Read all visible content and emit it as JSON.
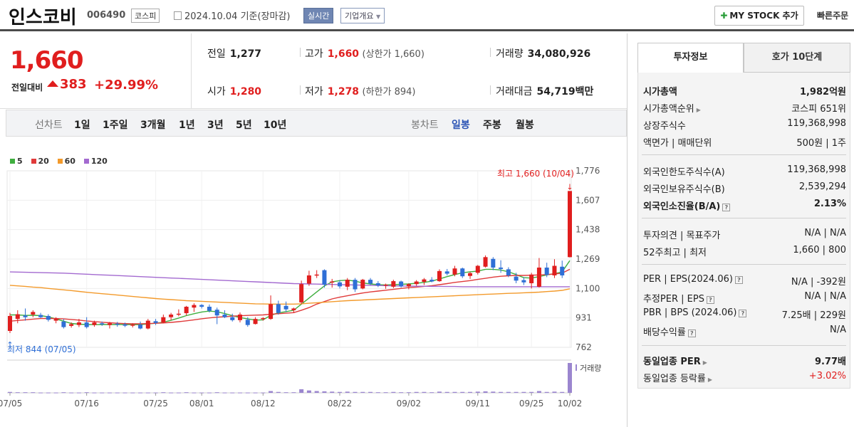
{
  "header": {
    "name": "인스코비",
    "code": "006490",
    "market": "코스피",
    "date": "2024.10.04 기준(장마감)",
    "realtime": "실시간",
    "overview": "기업개요",
    "mystock": "MY STOCK 추가",
    "quick_order": "빠른주문"
  },
  "price": {
    "current": "1,660",
    "change_label": "전일대비",
    "change": "383",
    "change_pct": "+29.99%",
    "prev_label": "전일",
    "prev": "1,277",
    "open_label": "시가",
    "open": "1,280",
    "high_label": "고가",
    "high": "1,660",
    "high_note": "(상한가 1,660)",
    "low_label": "저가",
    "low": "1,278",
    "low_note": "(하한가 894)",
    "volume_label": "거래량",
    "volume": "34,080,926",
    "value_label": "거래대금",
    "value": "54,719",
    "value_unit": "백만"
  },
  "range_bar": {
    "line_label": "선차트",
    "line_opts": [
      "1일",
      "1주일",
      "3개월",
      "1년",
      "3년",
      "5년",
      "10년"
    ],
    "candle_label": "봉차트",
    "candle_opts": [
      "일봉",
      "주봉",
      "월봉"
    ]
  },
  "legend": [
    {
      "name": "5",
      "color": "#3fae3f"
    },
    {
      "name": "20",
      "color": "#e03a3a"
    },
    {
      "name": "60",
      "color": "#f39a2b"
    },
    {
      "name": "120",
      "color": "#a36ad0"
    }
  ],
  "colors": {
    "up": "#e01e1e",
    "down": "#2f6fd6",
    "volume": "#9b86cf",
    "accent": "#2b54b5"
  },
  "chart_data": {
    "type": "candlestick",
    "y_ticks": [
      "1,776",
      "1,607",
      "1,438",
      "1,269",
      "1,100",
      "931",
      "762"
    ],
    "ylim": [
      762,
      1776
    ],
    "x_ticks": [
      "07/05",
      "07/16",
      "07/25",
      "08/01",
      "08/12",
      "08/22",
      "09/02",
      "09/11",
      "09/25",
      "10/02"
    ],
    "high_annotation": "최고 1,660 (10/04)",
    "low_annotation": "최저 844 (07/05)",
    "volume_label": "거래량",
    "candles": [
      {
        "o": 856,
        "h": 960,
        "l": 844,
        "c": 942
      },
      {
        "o": 925,
        "h": 975,
        "l": 900,
        "c": 952
      },
      {
        "o": 945,
        "h": 985,
        "l": 915,
        "c": 935
      },
      {
        "o": 950,
        "h": 975,
        "l": 935,
        "c": 965
      },
      {
        "o": 948,
        "h": 960,
        "l": 930,
        "c": 935
      },
      {
        "o": 942,
        "h": 952,
        "l": 910,
        "c": 920
      },
      {
        "o": 915,
        "h": 935,
        "l": 900,
        "c": 925
      },
      {
        "o": 910,
        "h": 925,
        "l": 870,
        "c": 878
      },
      {
        "o": 885,
        "h": 905,
        "l": 875,
        "c": 895
      },
      {
        "o": 890,
        "h": 925,
        "l": 878,
        "c": 905
      },
      {
        "o": 905,
        "h": 935,
        "l": 870,
        "c": 878
      },
      {
        "o": 890,
        "h": 915,
        "l": 880,
        "c": 905
      },
      {
        "o": 900,
        "h": 910,
        "l": 885,
        "c": 895
      },
      {
        "o": 890,
        "h": 908,
        "l": 870,
        "c": 900
      },
      {
        "o": 898,
        "h": 908,
        "l": 880,
        "c": 892
      },
      {
        "o": 894,
        "h": 904,
        "l": 878,
        "c": 886
      },
      {
        "o": 888,
        "h": 900,
        "l": 876,
        "c": 892
      },
      {
        "o": 892,
        "h": 910,
        "l": 865,
        "c": 870
      },
      {
        "o": 870,
        "h": 925,
        "l": 865,
        "c": 915
      },
      {
        "o": 912,
        "h": 925,
        "l": 890,
        "c": 902
      },
      {
        "o": 905,
        "h": 950,
        "l": 900,
        "c": 935
      },
      {
        "o": 935,
        "h": 960,
        "l": 918,
        "c": 950
      },
      {
        "o": 950,
        "h": 980,
        "l": 940,
        "c": 955
      },
      {
        "o": 958,
        "h": 1000,
        "l": 945,
        "c": 995
      },
      {
        "o": 990,
        "h": 1015,
        "l": 965,
        "c": 1005
      },
      {
        "o": 1005,
        "h": 1010,
        "l": 985,
        "c": 995
      },
      {
        "o": 995,
        "h": 1008,
        "l": 962,
        "c": 972
      },
      {
        "o": 978,
        "h": 990,
        "l": 895,
        "c": 945
      },
      {
        "o": 950,
        "h": 975,
        "l": 930,
        "c": 935
      },
      {
        "o": 935,
        "h": 955,
        "l": 910,
        "c": 918
      },
      {
        "o": 918,
        "h": 962,
        "l": 905,
        "c": 950
      },
      {
        "o": 920,
        "h": 935,
        "l": 880,
        "c": 890
      },
      {
        "o": 896,
        "h": 935,
        "l": 893,
        "c": 925
      },
      {
        "o": 925,
        "h": 935,
        "l": 915,
        "c": 930
      },
      {
        "o": 925,
        "h": 1060,
        "l": 920,
        "c": 1010
      },
      {
        "o": 1010,
        "h": 1030,
        "l": 950,
        "c": 960
      },
      {
        "o": 1000,
        "h": 1025,
        "l": 965,
        "c": 980
      },
      {
        "o": 975,
        "h": 990,
        "l": 960,
        "c": 985
      },
      {
        "o": 1020,
        "h": 1145,
        "l": 1010,
        "c": 1125
      },
      {
        "o": 1128,
        "h": 1202,
        "l": 1115,
        "c": 1175
      },
      {
        "o": 1180,
        "h": 1205,
        "l": 1160,
        "c": 1180
      },
      {
        "o": 1205,
        "h": 1210,
        "l": 1105,
        "c": 1122
      },
      {
        "o": 1135,
        "h": 1155,
        "l": 1105,
        "c": 1140
      },
      {
        "o": 1135,
        "h": 1148,
        "l": 1100,
        "c": 1112
      },
      {
        "o": 1110,
        "h": 1160,
        "l": 1090,
        "c": 1150
      },
      {
        "o": 1150,
        "h": 1160,
        "l": 1080,
        "c": 1095
      },
      {
        "o": 1100,
        "h": 1155,
        "l": 1095,
        "c": 1150
      },
      {
        "o": 1150,
        "h": 1160,
        "l": 1120,
        "c": 1128
      },
      {
        "o": 1130,
        "h": 1142,
        "l": 1108,
        "c": 1118
      },
      {
        "o": 1118,
        "h": 1128,
        "l": 1098,
        "c": 1122
      },
      {
        "o": 1110,
        "h": 1150,
        "l": 1102,
        "c": 1142
      },
      {
        "o": 1140,
        "h": 1145,
        "l": 1105,
        "c": 1112
      },
      {
        "o": 1112,
        "h": 1130,
        "l": 1095,
        "c": 1125
      },
      {
        "o": 1125,
        "h": 1148,
        "l": 1115,
        "c": 1140
      },
      {
        "o": 1138,
        "h": 1160,
        "l": 1120,
        "c": 1152
      },
      {
        "o": 1150,
        "h": 1165,
        "l": 1135,
        "c": 1140
      },
      {
        "o": 1142,
        "h": 1210,
        "l": 1138,
        "c": 1200
      },
      {
        "o": 1198,
        "h": 1212,
        "l": 1175,
        "c": 1185
      },
      {
        "o": 1180,
        "h": 1230,
        "l": 1170,
        "c": 1215
      },
      {
        "o": 1215,
        "h": 1220,
        "l": 1160,
        "c": 1170
      },
      {
        "o": 1172,
        "h": 1195,
        "l": 1155,
        "c": 1188
      },
      {
        "o": 1190,
        "h": 1235,
        "l": 1180,
        "c": 1230
      },
      {
        "o": 1225,
        "h": 1290,
        "l": 1220,
        "c": 1280
      },
      {
        "o": 1270,
        "h": 1280,
        "l": 1205,
        "c": 1220
      },
      {
        "o": 1220,
        "h": 1262,
        "l": 1190,
        "c": 1212
      },
      {
        "o": 1210,
        "h": 1222,
        "l": 1165,
        "c": 1175
      },
      {
        "o": 1168,
        "h": 1190,
        "l": 1130,
        "c": 1145
      },
      {
        "o": 1148,
        "h": 1165,
        "l": 1120,
        "c": 1135
      },
      {
        "o": 1130,
        "h": 1190,
        "l": 1100,
        "c": 1180
      },
      {
        "o": 1110,
        "h": 1275,
        "l": 1105,
        "c": 1220
      },
      {
        "o": 1220,
        "h": 1248,
        "l": 1165,
        "c": 1178
      },
      {
        "o": 1175,
        "h": 1268,
        "l": 1160,
        "c": 1230
      },
      {
        "o": 1225,
        "h": 1260,
        "l": 1160,
        "c": 1175
      },
      {
        "o": 1280,
        "h": 1660,
        "l": 1278,
        "c": 1660
      }
    ],
    "ma": {
      "5": [
        948,
        948,
        945,
        946,
        944,
        937,
        925,
        912,
        899,
        895,
        893,
        892,
        893,
        893,
        893,
        893,
        892,
        892,
        896,
        900,
        906,
        917,
        930,
        944,
        955,
        965,
        970,
        966,
        956,
        944,
        933,
        925,
        918,
        920,
        945,
        960,
        967,
        975,
        1010,
        1045,
        1080,
        1115,
        1138,
        1145,
        1148,
        1142,
        1132,
        1126,
        1122,
        1120,
        1122,
        1124,
        1126,
        1130,
        1135,
        1142,
        1155,
        1168,
        1180,
        1190,
        1196,
        1200,
        1210,
        1210,
        1206,
        1196,
        1180,
        1162,
        1160,
        1168,
        1178,
        1185,
        1195,
        1260
      ],
      "20": [
        912,
        916,
        920,
        924,
        927,
        928,
        927,
        925,
        922,
        918,
        913,
        910,
        906,
        903,
        900,
        898,
        897,
        897,
        898,
        900,
        902,
        905,
        909,
        914,
        920,
        926,
        931,
        935,
        938,
        941,
        943,
        945,
        947,
        948,
        952,
        955,
        958,
        961,
        975,
        990,
        1010,
        1025,
        1040,
        1050,
        1058,
        1066,
        1074,
        1080,
        1085,
        1090,
        1095,
        1100,
        1105,
        1108,
        1112,
        1116,
        1122,
        1128,
        1135,
        1140,
        1145,
        1152,
        1158,
        1165,
        1170,
        1173,
        1175,
        1175,
        1176,
        1178,
        1180,
        1183,
        1188,
        1210
      ],
      "60": [
        1118,
        1115,
        1112,
        1108,
        1105,
        1100,
        1096,
        1092,
        1088,
        1083,
        1078,
        1074,
        1070,
        1066,
        1062,
        1058,
        1054,
        1050,
        1046,
        1042,
        1039,
        1036,
        1033,
        1030,
        1028,
        1026,
        1024,
        1022,
        1020,
        1018,
        1016,
        1014,
        1012,
        1011,
        1010,
        1010,
        1010,
        1010,
        1012,
        1015,
        1018,
        1021,
        1024,
        1027,
        1030,
        1032,
        1034,
        1036,
        1038,
        1040,
        1042,
        1044,
        1046,
        1048,
        1050,
        1052,
        1054,
        1056,
        1058,
        1060,
        1062,
        1064,
        1066,
        1068,
        1070,
        1072,
        1073,
        1075,
        1077,
        1079,
        1082,
        1085,
        1089,
        1098
      ],
      "120": [
        1195,
        1194,
        1193,
        1192,
        1191,
        1190,
        1189,
        1188,
        1186,
        1184,
        1182,
        1180,
        1178,
        1176,
        1174,
        1172,
        1170,
        1168,
        1166,
        1164,
        1162,
        1160,
        1158,
        1156,
        1154,
        1152,
        1150,
        1148,
        1146,
        1144,
        1142,
        1140,
        1138,
        1136,
        1134,
        1132,
        1130,
        1128,
        1127,
        1126,
        1125,
        1124,
        1123,
        1122,
        1121,
        1120,
        1119,
        1118,
        1117,
        1116,
        1115,
        1114,
        1114,
        1113,
        1113,
        1112,
        1112,
        1111,
        1111,
        1110,
        1110,
        1110,
        1110,
        1110,
        1110,
        1110,
        1110,
        1110,
        1110,
        1110,
        1110,
        1110,
        1110,
        1110
      ]
    },
    "volume": [
      3,
      2,
      2,
      2,
      1,
      1,
      1,
      2,
      1,
      1,
      2,
      1,
      1,
      1,
      1,
      1,
      1,
      1,
      1,
      1,
      2,
      1,
      1,
      2,
      1,
      1,
      1,
      2,
      1,
      1,
      1,
      1,
      1,
      1,
      6,
      3,
      2,
      2,
      12,
      8,
      6,
      5,
      4,
      3,
      4,
      3,
      3,
      3,
      2,
      2,
      3,
      2,
      2,
      3,
      3,
      2,
      4,
      3,
      3,
      3,
      3,
      4,
      5,
      4,
      3,
      3,
      3,
      3,
      3,
      6,
      3,
      4,
      3,
      100
    ]
  },
  "right_panel": {
    "tabs": [
      "투자정보",
      "호가 10단계"
    ],
    "group1": [
      {
        "label": "시가총액",
        "value": "1,982억원",
        "bold": true
      },
      {
        "label": "시가총액순위",
        "value": "코스피 651위"
      },
      {
        "label": "상장주식수",
        "value": "119,368,998"
      },
      {
        "label": "액면가 | 매매단위",
        "value": "500원 | 1주"
      }
    ],
    "group2": [
      {
        "label": "외국인한도주식수(A)",
        "value": "119,368,998"
      },
      {
        "label": "외국인보유주식수(B)",
        "value": "2,539,294"
      },
      {
        "label": "외국인소진율(B/A)",
        "value": "2.13%",
        "bold": true
      }
    ],
    "group3": [
      {
        "label": "투자의견 | 목표주가",
        "value": "N/A | N/A"
      },
      {
        "label": "52주최고 | 최저",
        "value": "1,660 | 800"
      }
    ],
    "group4": [
      {
        "label": "PER | EPS(2024.06)",
        "value": "N/A | -392원"
      },
      {
        "label": "추정PER | EPS",
        "value": "N/A | N/A"
      },
      {
        "label": "PBR | BPS (2024.06)",
        "value": "7.25배 | 229원"
      },
      {
        "label": "배당수익률",
        "value": "N/A"
      }
    ],
    "group5": [
      {
        "label": "동일업종 PER",
        "value": "9.77배",
        "bold": true
      },
      {
        "label": "동일업종 등락률",
        "value": "+3.02%",
        "red": true
      }
    ]
  }
}
